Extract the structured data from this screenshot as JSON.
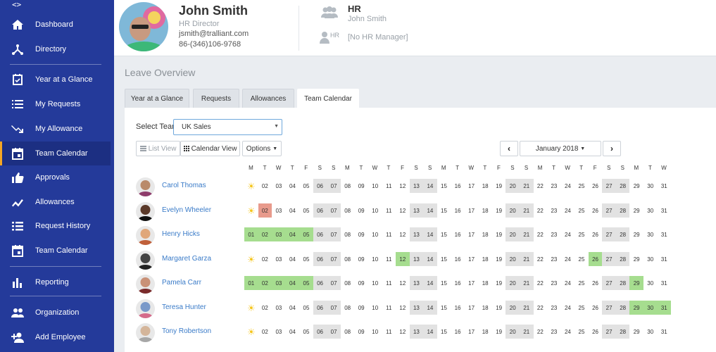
{
  "sidebar": {
    "toggle": "<>",
    "items": [
      {
        "label": "Dashboard",
        "icon": "home-icon"
      },
      {
        "label": "Directory",
        "icon": "directory-icon"
      },
      {
        "label": "Year at a Glance",
        "icon": "calendar-check-icon"
      },
      {
        "label": "My Requests",
        "icon": "list-icon"
      },
      {
        "label": "My Allowance",
        "icon": "trend-down-icon"
      },
      {
        "label": "Team Calendar",
        "icon": "calendar-icon",
        "active": true
      },
      {
        "label": "Approvals",
        "icon": "thumbs-up-icon"
      },
      {
        "label": "Allowances",
        "icon": "trend-line-icon"
      },
      {
        "label": "Request History",
        "icon": "history-list-icon"
      },
      {
        "label": "Team Calendar",
        "icon": "calendar-icon"
      },
      {
        "label": "Reporting",
        "icon": "bar-chart-icon"
      },
      {
        "label": "Organization",
        "icon": "people-icon"
      },
      {
        "label": "Add Employee",
        "icon": "add-person-icon"
      }
    ]
  },
  "header": {
    "name": "John Smith",
    "role": "HR Director",
    "email": "jsmith@tralliant.com",
    "phone": "86-(346)106-9768",
    "hr_title": "HR",
    "hr_person": "John Smith",
    "hr_manager_label": "HR",
    "hr_manager_value": "[No HR Manager]"
  },
  "page_title": "Leave Overview",
  "tabs": [
    "Year at a Glance",
    "Requests",
    "Allowances",
    "Team Calendar"
  ],
  "active_tab": "Team Calendar",
  "controls": {
    "select_team_label": "Select Team",
    "select_team_value": "UK Sales",
    "list_view": "List View",
    "calendar_view": "Calendar View",
    "options": "Options",
    "month": "January 2018"
  },
  "calendar": {
    "weekdays": [
      "M",
      "T",
      "W",
      "T",
      "F",
      "S",
      "S",
      "M",
      "T",
      "W",
      "T",
      "F",
      "S",
      "S",
      "M",
      "T",
      "W",
      "T",
      "F",
      "S",
      "S",
      "M",
      "T",
      "W",
      "T",
      "F",
      "S",
      "S",
      "M",
      "T",
      "W"
    ],
    "days": [
      "01",
      "02",
      "03",
      "04",
      "05",
      "06",
      "07",
      "08",
      "09",
      "10",
      "11",
      "12",
      "13",
      "14",
      "15",
      "16",
      "17",
      "18",
      "19",
      "20",
      "21",
      "22",
      "23",
      "24",
      "25",
      "26",
      "27",
      "28",
      "29",
      "30",
      "31"
    ],
    "weekend_days": [
      6,
      7,
      13,
      14,
      20,
      21,
      27,
      28
    ],
    "employees": [
      {
        "name": "Carol Thomas",
        "holiday_icon": "sun-icon",
        "leave": [],
        "leave_red": []
      },
      {
        "name": "Evelyn Wheeler",
        "holiday_icon": "sun-icon",
        "leave": [],
        "leave_red": [
          2
        ]
      },
      {
        "name": "Henry Hicks",
        "holiday_icon": null,
        "leave": [
          1,
          2,
          3,
          4,
          5
        ],
        "leave_red": []
      },
      {
        "name": "Margaret Garza",
        "holiday_icon": "sun-icon",
        "leave": [
          12,
          26
        ],
        "leave_red": []
      },
      {
        "name": "Pamela Carr",
        "holiday_icon": null,
        "leave": [
          1,
          2,
          3,
          4,
          5,
          29
        ],
        "leave_red": []
      },
      {
        "name": "Teresa Hunter",
        "holiday_icon": "sun-icon",
        "leave": [
          29,
          30,
          31
        ],
        "leave_red": []
      },
      {
        "name": "Tony Robertson",
        "holiday_icon": "sun-icon",
        "leave": [],
        "leave_red": []
      }
    ]
  },
  "colors": {
    "sidebar_bg": "#243a9a",
    "active_accent": "#f5a623",
    "leave_green": "#a6dd8f",
    "leave_red": "#e89a8c",
    "weekend_gray": "#e2e2e2",
    "link_blue": "#3a7bc8"
  }
}
